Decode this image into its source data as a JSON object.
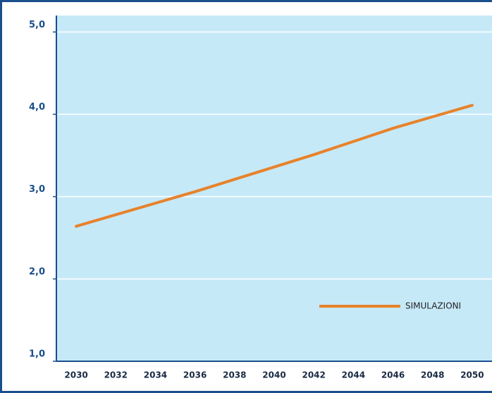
{
  "chart_data": {
    "type": "line",
    "x": [
      2030,
      2032,
      2034,
      2036,
      2038,
      2040,
      2042,
      2044,
      2046,
      2048,
      2050
    ],
    "series": [
      {
        "name": "SIMULAZIONI",
        "color": "#e8822a",
        "values": [
          2.64,
          2.78,
          2.92,
          3.06,
          3.21,
          3.36,
          3.51,
          3.67,
          3.83,
          3.97,
          4.11
        ]
      }
    ],
    "xlim": [
      2029,
      2051
    ],
    "xticks": [
      2030,
      2032,
      2034,
      2036,
      2038,
      2040,
      2042,
      2044,
      2046,
      2048,
      2050
    ],
    "ylim": [
      1,
      5.2
    ],
    "yticks": [
      {
        "value": 1,
        "label": "1,0"
      },
      {
        "value": 2,
        "label": "2,0"
      },
      {
        "value": 3,
        "label": "3,0"
      },
      {
        "value": 4,
        "label": "4,0"
      },
      {
        "value": 5,
        "label": "5,0"
      }
    ],
    "grid": true,
    "legend": "lower right",
    "background": "#c6e9f8"
  }
}
